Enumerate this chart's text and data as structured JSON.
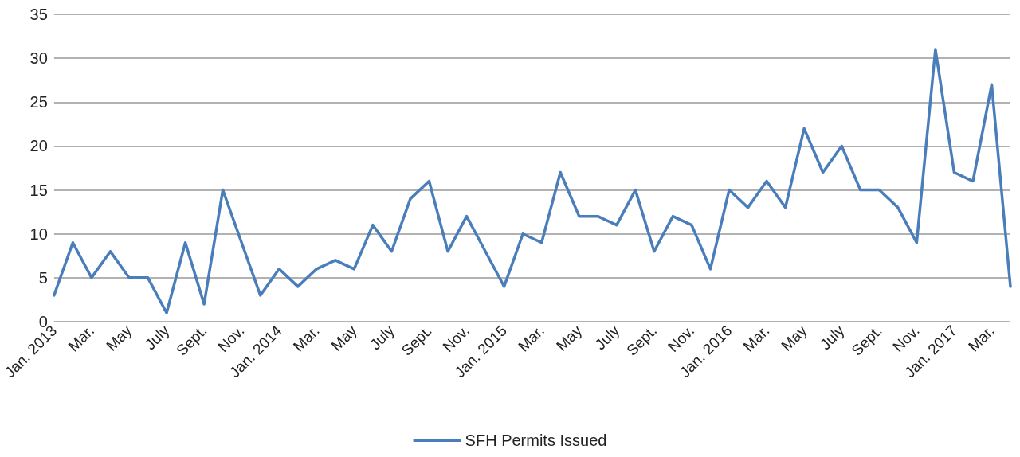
{
  "chart_data": {
    "type": "line",
    "categories": [
      "Jan. 2013",
      null,
      "Mar.",
      null,
      "May",
      null,
      "July",
      null,
      "Sept.",
      null,
      "Nov.",
      null,
      "Jan. 2014",
      null,
      "Mar.",
      null,
      "May",
      null,
      "July",
      null,
      "Sept.",
      null,
      "Nov.",
      null,
      "Jan. 2015",
      null,
      "Mar.",
      null,
      "May",
      null,
      "July",
      null,
      "Sept.",
      null,
      "Nov.",
      null,
      "Jan. 2016",
      null,
      "Mar.",
      null,
      "May",
      null,
      "July",
      null,
      "Sept.",
      null,
      "Nov.",
      null,
      "Jan. 2017",
      null,
      "Mar.",
      null
    ],
    "series": [
      {
        "name": "SFH Permits Issued",
        "color": "#4a7ebb",
        "values": [
          3,
          9,
          5,
          8,
          5,
          5,
          1,
          9,
          2,
          15,
          9,
          3,
          6,
          4,
          6,
          7,
          6,
          11,
          8,
          14,
          16,
          8,
          12,
          8,
          4,
          10,
          9,
          17,
          12,
          12,
          11,
          15,
          8,
          12,
          11,
          6,
          15,
          13,
          16,
          13,
          22,
          17,
          20,
          15,
          15,
          13,
          9,
          31,
          17,
          16,
          27,
          4
        ]
      }
    ],
    "ylim": [
      0,
      35
    ],
    "yticks": [
      0,
      5,
      10,
      15,
      20,
      25,
      30,
      35
    ],
    "grid": "y",
    "legend": "bottom",
    "marker": "none",
    "line_style": "solid"
  }
}
